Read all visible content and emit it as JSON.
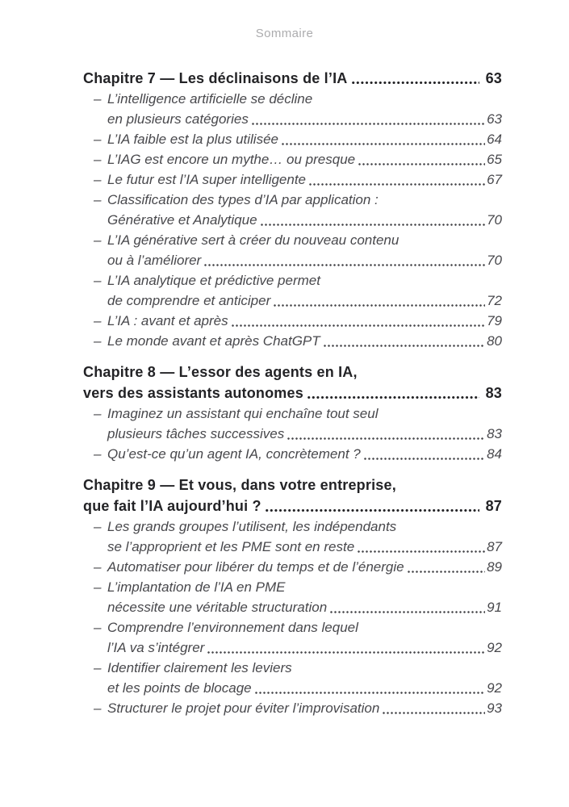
{
  "page": {
    "header": "Sommaire"
  },
  "toc": {
    "dash": "–",
    "chapters": [
      {
        "title_lines": [
          "Chapitre 7 — Les déclinaisons de l’IA"
        ],
        "page": "63",
        "items": [
          {
            "lines": [
              "L’intelligence artificielle se décline",
              "en plusieurs catégories"
            ],
            "page": "63"
          },
          {
            "lines": [
              "L’IA faible est la plus utilisée"
            ],
            "page": "64"
          },
          {
            "lines": [
              "L’IAG est encore un mythe… ou presque"
            ],
            "page": "65"
          },
          {
            "lines": [
              "Le futur est l’IA super intelligente"
            ],
            "page": "67"
          },
          {
            "lines": [
              "Classification des types d’IA par application :",
              "Générative et Analytique"
            ],
            "page": "70"
          },
          {
            "lines": [
              "L’IA générative sert à créer du nouveau contenu",
              "ou à l’améliorer"
            ],
            "page": "70"
          },
          {
            "lines": [
              "L’IA analytique et prédictive permet",
              "de comprendre et anticiper"
            ],
            "page": "72"
          },
          {
            "lines": [
              "L’IA : avant et après"
            ],
            "page": "79"
          },
          {
            "lines": [
              "Le monde avant et après ChatGPT"
            ],
            "page": "80"
          }
        ]
      },
      {
        "title_lines": [
          "Chapitre 8 — L’essor des agents en IA,",
          "vers des assistants autonomes"
        ],
        "page": "83",
        "items": [
          {
            "lines": [
              "Imaginez un assistant qui enchaîne tout seul",
              "plusieurs tâches successives"
            ],
            "page": "83"
          },
          {
            "lines": [
              "Qu’est-ce qu’un agent IA, concrètement ?"
            ],
            "page": "84"
          }
        ]
      },
      {
        "title_lines": [
          "Chapitre 9 — Et vous, dans votre entreprise,",
          "que fait l’IA aujourd’hui ?"
        ],
        "page": "87",
        "items": [
          {
            "lines": [
              "Les grands groupes l’utilisent, les indépendants",
              "se l’approprient et les PME sont en reste"
            ],
            "page": "87"
          },
          {
            "lines": [
              "Automatiser pour libérer du temps et de l’énergie"
            ],
            "page": "89"
          },
          {
            "lines": [
              "L’implantation de l’IA en PME",
              "nécessite une véritable structuration"
            ],
            "page": "91"
          },
          {
            "lines": [
              "Comprendre l’environnement dans lequel",
              "l’IA va s’intégrer"
            ],
            "page": "92"
          },
          {
            "lines": [
              "Identifier clairement les leviers",
              "et les points de blocage"
            ],
            "page": "92"
          },
          {
            "lines": [
              "Structurer le projet pour éviter l’improvisation"
            ],
            "page": "93"
          }
        ]
      }
    ]
  }
}
